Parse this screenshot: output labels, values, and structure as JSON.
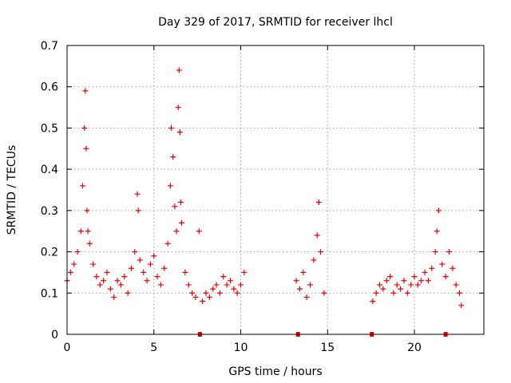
{
  "chart_data": {
    "type": "scatter",
    "title": "Day 329 of 2017, SRMTID for receiver lhcl",
    "xlabel": "GPS time / hours",
    "ylabel": "SRMTID / TECUs",
    "xlim": [
      0,
      24
    ],
    "ylim": [
      0,
      0.7
    ],
    "x_ticks": [
      0,
      5,
      10,
      15,
      20
    ],
    "x_tick_labels": [
      "0",
      "5",
      "10",
      "15",
      "20"
    ],
    "y_ticks": [
      0,
      0.1,
      0.2,
      0.3,
      0.4,
      0.5,
      0.6,
      0.7
    ],
    "y_tick_labels": [
      "0",
      "0.1",
      "0.2",
      "0.3",
      "0.4",
      "0.5",
      "0.6",
      "0.7"
    ],
    "grid": true,
    "marker": "+",
    "color": "#ee0000",
    "series": [
      {
        "name": "SRMTID",
        "x": [
          0.0,
          0.2,
          0.4,
          0.6,
          0.8,
          0.9,
          1.0,
          1.05,
          1.1,
          1.15,
          1.2,
          1.3,
          1.5,
          1.7,
          1.9,
          2.1,
          2.3,
          2.5,
          2.7,
          2.9,
          3.1,
          3.3,
          3.5,
          3.7,
          3.9,
          4.05,
          4.1,
          4.2,
          4.4,
          4.6,
          4.8,
          5.0,
          5.2,
          5.4,
          5.6,
          5.8,
          5.95,
          6.0,
          6.1,
          6.2,
          6.3,
          6.4,
          6.45,
          6.5,
          6.55,
          6.6,
          6.8,
          7.0,
          7.2,
          7.4,
          7.6,
          7.8,
          8.0,
          8.2,
          8.4,
          8.6,
          8.8,
          9.0,
          9.2,
          9.4,
          9.6,
          9.8,
          10.0,
          10.2,
          13.2,
          13.4,
          13.6,
          13.8,
          14.0,
          14.2,
          14.4,
          14.5,
          14.6,
          14.8,
          17.6,
          17.8,
          18.0,
          18.2,
          18.4,
          18.6,
          18.8,
          19.0,
          19.2,
          19.4,
          19.6,
          19.8,
          20.0,
          20.2,
          20.4,
          20.6,
          20.8,
          21.0,
          21.2,
          21.3,
          21.4,
          21.6,
          21.8,
          22.0,
          22.2,
          22.4,
          22.6,
          22.7
        ],
        "y": [
          0.13,
          0.15,
          0.17,
          0.2,
          0.25,
          0.36,
          0.5,
          0.59,
          0.45,
          0.3,
          0.25,
          0.22,
          0.17,
          0.14,
          0.12,
          0.13,
          0.15,
          0.11,
          0.09,
          0.13,
          0.12,
          0.14,
          0.1,
          0.16,
          0.2,
          0.34,
          0.3,
          0.18,
          0.15,
          0.13,
          0.17,
          0.19,
          0.14,
          0.12,
          0.16,
          0.22,
          0.36,
          0.5,
          0.43,
          0.31,
          0.25,
          0.55,
          0.64,
          0.49,
          0.32,
          0.27,
          0.15,
          0.12,
          0.1,
          0.09,
          0.25,
          0.08,
          0.1,
          0.09,
          0.11,
          0.12,
          0.1,
          0.14,
          0.12,
          0.13,
          0.11,
          0.1,
          0.12,
          0.15,
          0.13,
          0.11,
          0.15,
          0.09,
          0.12,
          0.18,
          0.24,
          0.32,
          0.2,
          0.1,
          0.08,
          0.1,
          0.12,
          0.11,
          0.13,
          0.14,
          0.1,
          0.12,
          0.11,
          0.13,
          0.1,
          0.12,
          0.14,
          0.12,
          0.13,
          0.15,
          0.13,
          0.16,
          0.2,
          0.25,
          0.3,
          0.17,
          0.14,
          0.2,
          0.16,
          0.12,
          0.1,
          0.07
        ]
      }
    ],
    "gap_markers_x": [
      7.65,
      13.3,
      17.55,
      21.8
    ]
  }
}
